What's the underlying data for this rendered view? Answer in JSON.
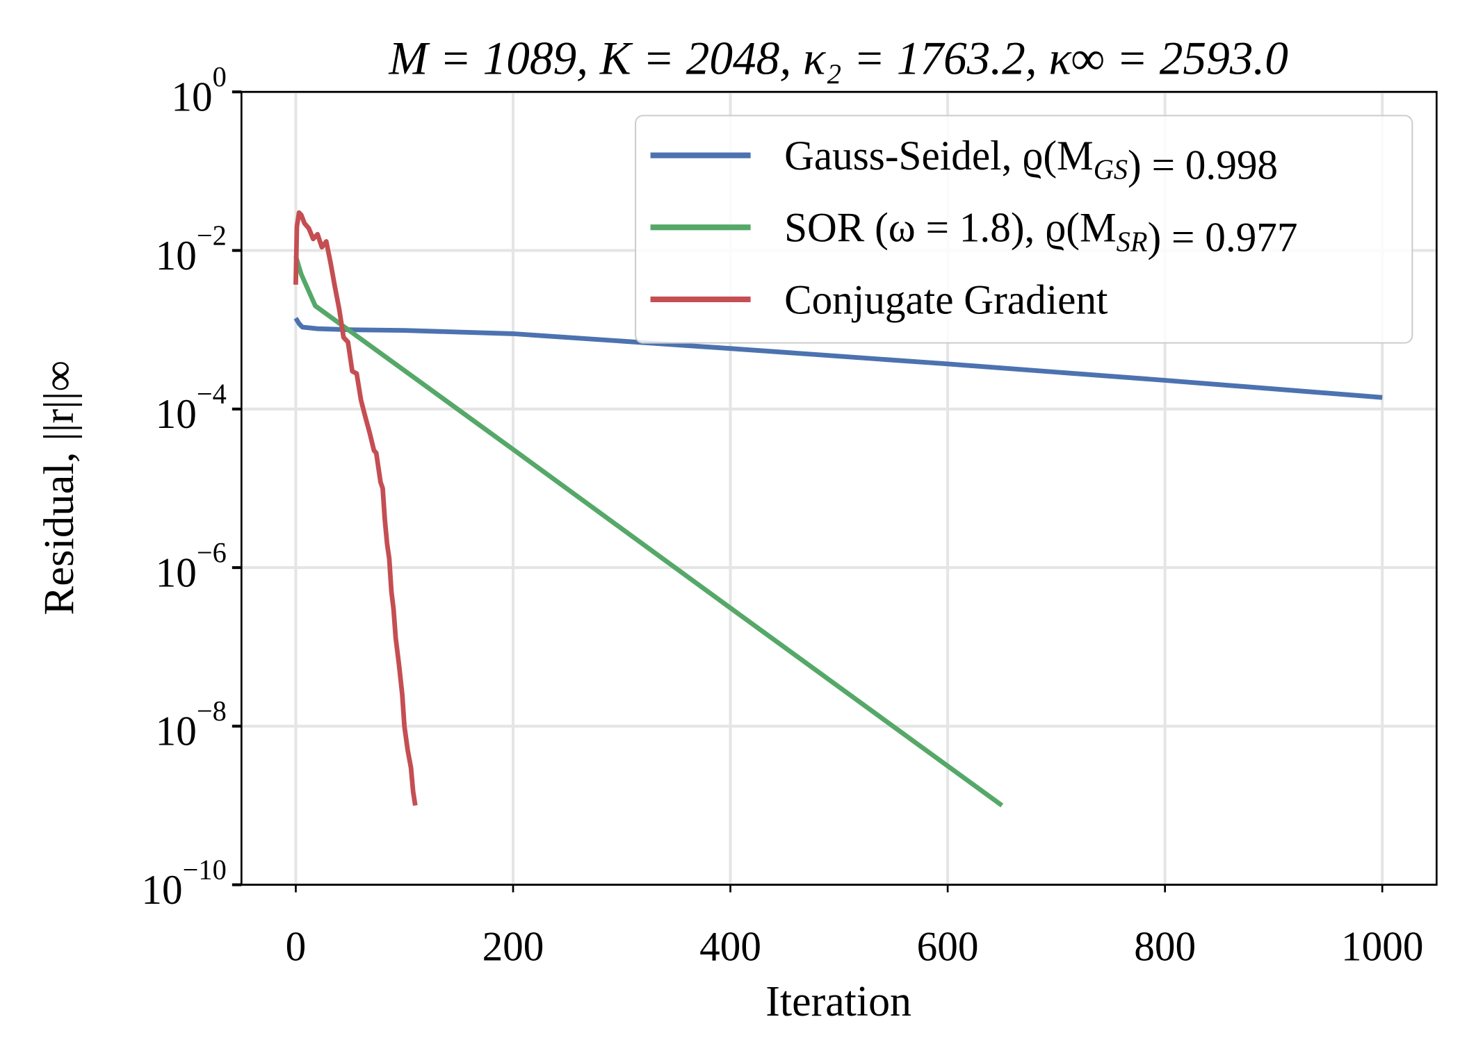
{
  "chart_data": {
    "type": "line",
    "title": "M = 1089, K = 2048, κ₂ = 1763.2, κ∞ = 2593.0",
    "xlabel": "Iteration",
    "ylabel": "Residual, ||r||∞",
    "xlim": [
      -50,
      1050
    ],
    "ylim": [
      1e-10,
      1
    ],
    "yscale": "log",
    "grid": true,
    "legend_position": "top-right",
    "xticks": [
      0,
      200,
      400,
      600,
      800,
      1000
    ],
    "xtick_labels": [
      "0",
      "200",
      "400",
      "600",
      "800",
      "1000"
    ],
    "yticks_exponents": [
      0,
      -2,
      -4,
      -6,
      -8,
      -10
    ],
    "ytick_base": "10",
    "series": [
      {
        "name": "Gauss-Seidel, ϱ(M_GS) = 0.998",
        "color": "#4c72b0",
        "points": [
          [
            0,
            0.0014
          ],
          [
            3,
            0.0012
          ],
          [
            6,
            0.00108
          ],
          [
            20,
            0.00103
          ],
          [
            50,
            0.001
          ],
          [
            100,
            0.00098
          ],
          [
            200,
            0.00089
          ],
          [
            400,
            0.00058
          ],
          [
            600,
            0.00037
          ],
          [
            800,
            0.00023
          ],
          [
            1000,
            0.00014
          ]
        ]
      },
      {
        "name": "SOR (ω = 1.8), ϱ(M_SR) = 0.977",
        "color": "#55a868",
        "points": [
          [
            0,
            0.0085
          ],
          [
            5,
            0.005
          ],
          [
            18,
            0.002
          ],
          [
            200,
            3.1e-05
          ],
          [
            400,
            3.1e-07
          ],
          [
            650,
            1e-09
          ]
        ]
      },
      {
        "name": "Conjugate Gradient",
        "color": "#c44e52",
        "points": [
          [
            0,
            0.0037
          ],
          [
            1,
            0.02
          ],
          [
            3,
            0.03
          ],
          [
            5,
            0.028
          ],
          [
            8,
            0.022
          ],
          [
            12,
            0.019
          ],
          [
            16,
            0.014
          ],
          [
            20,
            0.016
          ],
          [
            24,
            0.011
          ],
          [
            28,
            0.013
          ],
          [
            32,
            0.007
          ],
          [
            36,
            0.0035
          ],
          [
            40,
            0.0018
          ],
          [
            44,
            0.0008
          ],
          [
            48,
            0.0007
          ],
          [
            52,
            0.0003
          ],
          [
            56,
            0.00028
          ],
          [
            60,
            0.00013
          ],
          [
            64,
            8e-05
          ],
          [
            68,
            5e-05
          ],
          [
            72,
            3e-05
          ],
          [
            74,
            2.8e-05
          ],
          [
            78,
            1.2e-05
          ],
          [
            80,
            1e-05
          ],
          [
            82,
            4e-06
          ],
          [
            84,
            2e-06
          ],
          [
            86,
            1.3e-06
          ],
          [
            88,
            5e-07
          ],
          [
            90,
            3e-07
          ],
          [
            92,
            1.3e-07
          ],
          [
            95,
            6e-08
          ],
          [
            98,
            2.5e-08
          ],
          [
            100,
            1e-08
          ],
          [
            103,
            5e-09
          ],
          [
            106,
            3e-09
          ],
          [
            108,
            1.5e-09
          ],
          [
            110,
            1e-09
          ]
        ]
      }
    ]
  }
}
